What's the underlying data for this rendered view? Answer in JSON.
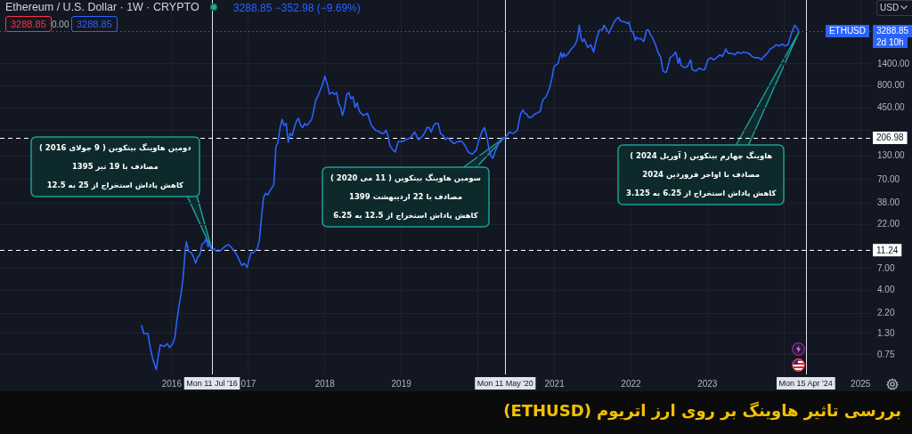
{
  "chart_data": {
    "type": "line",
    "title": "بررسی تاثیر هاوینگ بر روی ارز اتریوم (ETHUSD)",
    "subtitle": "Ethereum / U.S. Dollar · 1W · CRYPTO",
    "x": [
      "2015-08-10",
      "2015-08-20",
      "2015-09-09",
      "2015-09-19",
      "2015-10-03",
      "2015-10-19",
      "2015-10-29",
      "2015-11-07",
      "2015-11-27",
      "2015-12-11",
      "2015-12-22",
      "2016-01-06",
      "2016-01-16",
      "2016-01-25",
      "2016-02-04",
      "2016-02-14",
      "2016-02-24",
      "2016-03-05",
      "2016-03-11",
      "2016-03-21",
      "2016-04-04",
      "2016-04-14",
      "2016-04-24",
      "2016-05-04",
      "2016-05-14",
      "2016-05-24",
      "2016-06-03",
      "2016-06-13",
      "2016-06-22",
      "2016-07-02",
      "2016-07-11",
      "2016-07-21",
      "2016-07-31",
      "2016-08-19",
      "2016-09-08",
      "2016-09-28",
      "2016-10-17",
      "2016-11-06",
      "2016-11-30",
      "2016-12-12",
      "2016-12-26",
      "2017-01-04",
      "2017-01-14",
      "2017-01-24",
      "2017-02-12",
      "2017-02-22",
      "2017-03-04",
      "2017-03-14",
      "2017-03-23",
      "2017-04-03",
      "2017-04-13",
      "2017-05-02",
      "2017-05-12",
      "2017-05-22",
      "2017-06-01",
      "2017-06-11",
      "2017-06-20",
      "2017-06-30",
      "2017-07-10",
      "2017-07-19",
      "2017-07-29",
      "2017-08-08",
      "2017-08-18",
      "2017-08-28",
      "2017-09-07",
      "2017-09-17",
      "2017-09-27",
      "2017-10-07",
      "2017-10-16",
      "2017-10-30",
      "2017-11-08",
      "2017-11-18",
      "2017-12-02",
      "2017-12-18",
      "2018-01-01",
      "2018-01-12",
      "2018-01-23",
      "2018-02-06",
      "2018-02-16",
      "2018-02-26",
      "2018-03-07",
      "2018-03-17",
      "2018-03-26",
      "2018-04-05",
      "2018-04-15",
      "2018-04-25",
      "2018-05-05",
      "2018-05-15",
      "2018-05-25",
      "2018-06-04",
      "2018-06-14",
      "2018-06-24",
      "2018-07-03",
      "2018-07-23",
      "2018-08-11",
      "2018-08-31",
      "2018-09-20",
      "2018-09-30",
      "2018-10-09",
      "2018-10-19",
      "2018-10-29",
      "2018-11-08",
      "2018-11-22",
      "2018-12-03",
      "2018-12-17",
      "2019-01-06",
      "2019-01-25",
      "2019-02-14",
      "2019-03-05",
      "2019-03-25",
      "2019-04-14",
      "2019-04-24",
      "2019-05-04",
      "2019-05-14",
      "2019-05-23",
      "2019-06-02",
      "2019-06-12",
      "2019-06-26",
      "2019-07-07",
      "2019-07-20",
      "2019-07-31",
      "2019-08-10",
      "2019-08-29",
      "2019-09-08",
      "2019-09-28",
      "2019-10-18",
      "2019-11-02",
      "2019-11-16",
      "2019-12-05",
      "2019-12-25",
      "2020-01-04",
      "2020-01-20",
      "2020-02-02",
      "2020-02-12",
      "2020-02-22",
      "2020-03-04",
      "2020-03-13",
      "2020-03-23",
      "2020-04-11",
      "2020-05-01",
      "2020-05-11",
      "2020-05-30",
      "2020-06-18",
      "2020-07-07",
      "2020-07-18",
      "2020-07-25",
      "2020-08-04",
      "2020-08-11",
      "2020-08-22",
      "2020-08-29",
      "2020-09-12",
      "2020-09-27",
      "2020-10-11",
      "2020-10-25",
      "2020-11-01",
      "2020-11-08",
      "2020-11-22",
      "2020-12-07",
      "2020-12-14",
      "2020-12-21",
      "2020-12-28",
      "2021-01-04",
      "2021-01-18",
      "2021-01-25",
      "2021-02-01",
      "2021-02-08",
      "2021-02-15",
      "2021-02-21",
      "2021-03-08",
      "2021-03-22",
      "2021-04-05",
      "2021-04-19",
      "2021-04-29",
      "2021-05-08",
      "2021-05-16",
      "2021-05-22",
      "2021-06-09",
      "2021-06-23",
      "2021-07-07",
      "2021-07-21",
      "2021-08-04",
      "2021-08-18",
      "2021-08-25",
      "2021-09-08",
      "2021-09-18",
      "2021-09-29",
      "2021-10-13",
      "2021-10-27",
      "2021-11-04",
      "2021-11-10",
      "2021-12-02",
      "2021-12-16",
      "2021-12-22",
      "2021-12-31",
      "2022-01-14",
      "2022-01-21",
      "2022-01-28",
      "2022-02-03",
      "2022-02-17",
      "2022-03-03",
      "2022-03-17",
      "2022-03-24",
      "2022-04-07",
      "2022-04-13",
      "2022-04-28",
      "2022-05-12",
      "2022-05-22",
      "2022-06-03",
      "2022-06-17",
      "2022-06-23",
      "2022-07-07",
      "2022-07-24",
      "2022-08-03",
      "2022-08-15",
      "2022-08-21",
      "2022-08-29",
      "2022-09-12",
      "2022-09-26",
      "2022-10-13",
      "2022-10-20",
      "2022-11-07",
      "2022-11-22",
      "2022-12-06",
      "2022-12-19",
      "2023-01-03",
      "2023-01-18",
      "2023-01-31",
      "2023-02-15",
      "2023-03-01",
      "2023-03-14",
      "2023-03-30",
      "2023-04-05",
      "2023-04-13",
      "2023-04-27",
      "2023-05-12",
      "2023-05-26",
      "2023-06-09",
      "2023-06-23",
      "2023-07-07",
      "2023-07-21",
      "2023-08-04",
      "2023-08-18",
      "2023-09-02",
      "2023-09-16",
      "2023-09-22",
      "2023-10-13",
      "2023-10-28",
      "2023-11-11",
      "2023-11-25",
      "2023-12-08",
      "2023-12-24",
      "2024-01-07",
      "2024-01-21",
      "2024-02-05",
      "2024-02-22",
      "2024-03-04",
      "2024-03-11"
    ],
    "series": [
      {
        "name": "ETHUSD",
        "color": "#2962ff",
        "values": [
          1.6,
          1.3,
          1.3,
          0.93,
          0.66,
          0.51,
          0.73,
          0.97,
          0.93,
          1.0,
          0.9,
          1.0,
          1.18,
          1.8,
          2.6,
          3.6,
          5.5,
          11,
          14,
          11,
          10.5,
          9.4,
          8,
          9.4,
          10,
          13,
          13.7,
          15.2,
          12.3,
          13,
          11.24,
          11.7,
          11,
          11,
          12.3,
          13,
          11.7,
          10,
          7.6,
          8,
          7.2,
          8.9,
          10.5,
          10.5,
          11.7,
          14.5,
          26,
          44,
          49,
          47,
          52,
          61,
          164,
          184,
          270,
          334,
          285,
          300,
          184,
          231,
          219,
          270,
          318,
          343,
          285,
          270,
          300,
          285,
          300,
          334,
          414,
          545,
          638,
          790,
          1020,
          840,
          640,
          675,
          635,
          670,
          510,
          455,
          370,
          455,
          635,
          670,
          570,
          600,
          455,
          510,
          414,
          390,
          370,
          390,
          285,
          252,
          240,
          231,
          231,
          252,
          219,
          167,
          151,
          143,
          188,
          188,
          197,
          208,
          240,
          197,
          219,
          240,
          270,
          270,
          240,
          276,
          300,
          300,
          231,
          219,
          197,
          208,
          188,
          178,
          188,
          188,
          167,
          143,
          135,
          151,
          188,
          240,
          270,
          219,
          159,
          129,
          122,
          143,
          188,
          208,
          206.98,
          240,
          231,
          249,
          339,
          394,
          426,
          394,
          380,
          352,
          352,
          380,
          394,
          410,
          500,
          560,
          600,
          730,
          855,
          1000,
          1270,
          1350,
          1410,
          1650,
          1880,
          1650,
          1840,
          1700,
          1840,
          2070,
          2230,
          2600,
          3820,
          2700,
          2500,
          2700,
          2150,
          2310,
          1910,
          2700,
          3400,
          3400,
          3820,
          3400,
          3100,
          3550,
          4160,
          4580,
          4650,
          4300,
          4160,
          4000,
          4160,
          3400,
          3040,
          2600,
          2800,
          2700,
          2700,
          2500,
          3400,
          3400,
          2920,
          2800,
          2310,
          1840,
          1700,
          1165,
          1120,
          1210,
          1650,
          1780,
          1910,
          1410,
          1650,
          1340,
          1280,
          1300,
          1560,
          1210,
          1165,
          1260,
          1210,
          1210,
          1560,
          1650,
          1560,
          1650,
          1780,
          1700,
          2070,
          1910,
          1840,
          1840,
          1780,
          1910,
          1840,
          1910,
          1880,
          1820,
          1680,
          1650,
          1650,
          1560,
          1650,
          1840,
          2070,
          2150,
          2310,
          2230,
          2350,
          2230,
          2310,
          3040,
          3820,
          3550,
          3288.85
        ]
      }
    ],
    "log": true,
    "xlim": [
      "2013-10-03",
      "2025-02-20"
    ],
    "xticks": [
      "2016",
      {
        "value": "2017",
        "label": "017"
      },
      "2018",
      "2019",
      {
        "value": "2020",
        "label": null
      },
      "2021",
      "2022",
      "2023",
      {
        "value": "2024",
        "label": null
      },
      "2025"
    ],
    "ylim": [
      0.45,
      7350
    ],
    "yticks": [
      0.75,
      {
        "value": 1.3,
        "label": "1.30"
      },
      {
        "value": 2.2,
        "label": "2.20"
      },
      {
        "value": 4,
        "label": "4.00"
      },
      {
        "value": 7,
        "label": "7.00"
      },
      {
        "value": 22,
        "label": "22.00"
      },
      {
        "value": 38,
        "label": "38.00"
      },
      {
        "value": 70,
        "label": "70.00"
      },
      {
        "value": 130,
        "label": "130.00"
      },
      {
        "value": 250,
        "label": null
      },
      {
        "value": 450,
        "label": "450.00"
      },
      {
        "value": 800,
        "label": "800.00"
      },
      {
        "value": 1400,
        "label": "1400.00"
      }
    ],
    "grid": true,
    "ref_lines": [
      {
        "axis": "x",
        "value": "2016-07-11",
        "label": "Mon 11 Jul '16",
        "color": "#e0e3eb"
      },
      {
        "axis": "x",
        "value": "2020-05-11",
        "label": "Mon 11 May '20",
        "color": "#e0e3eb"
      },
      {
        "axis": "x",
        "value": "2024-04-15",
        "label": "Mon 15 Apr '24",
        "color": "#e0e3eb"
      },
      {
        "axis": "y",
        "value": 11.24,
        "label": "11.24",
        "color": "#ffffff",
        "line_style": "dashed"
      },
      {
        "axis": "y",
        "value": 206.98,
        "label": "206.98",
        "color": "#ffffff",
        "line_style": "dashed"
      },
      {
        "axis": "y",
        "value": 3288.85,
        "label": "3288.85",
        "color": "#2962ff",
        "line_style": "dotted"
      }
    ],
    "annotations": [
      "3288.85 −352.98 (−9.69%)",
      "3288.85",
      "0.00",
      "3288.85",
      "USD",
      "2d 10h",
      "دومین هاوینگ بیتکوین ( 9 جولای 2016 )\nمصادف با 19 تیر 1395\nکاهش پاداش استخراج از 25 به 12.5",
      "سومین هاوینگ بیتکوین ( 11 می 2020 )\nمصادف با 22 اردیبهشت 1399\nکاهش پاداش استخراج از 12.5 به 6.25",
      "هاوینگ چهارم بیتکوین ( آوریل 2024 )\nمصادف با اواخر فروردین 2024\nکاهش پاداش استخراج از 6.25 به 3.125"
    ]
  }
}
